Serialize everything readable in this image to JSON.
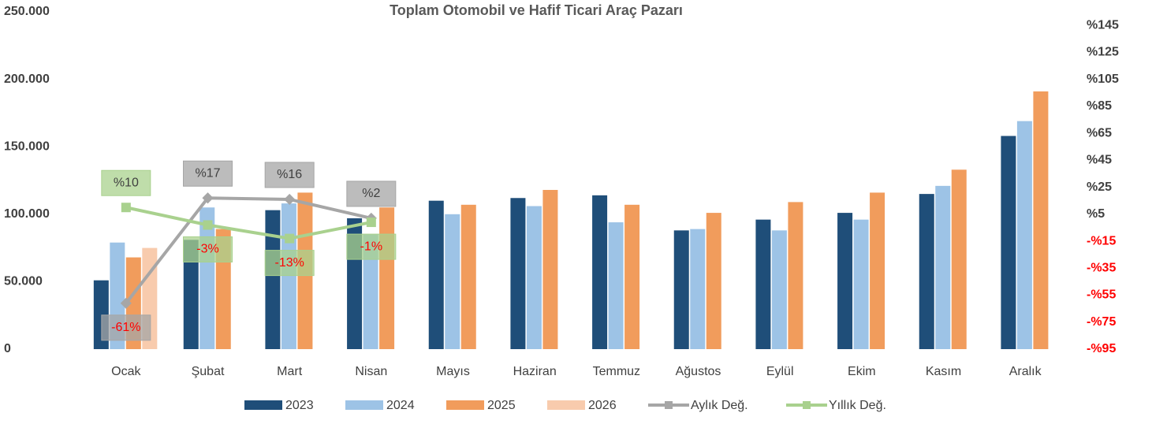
{
  "chart_data": {
    "type": "bar",
    "title": "Toplam Otomobil ve Hafif Ticari Araç Pazarı",
    "categories": [
      "Ocak",
      "Şubat",
      "Mart",
      "Nisan",
      "Mayıs",
      "Haziran",
      "Temmuz",
      "Ağustos",
      "Eylül",
      "Ekim",
      "Kasım",
      "Aralık"
    ],
    "series": [
      {
        "name": "2023",
        "color": "#1f4e79",
        "values": [
          51000,
          81000,
          103000,
          97000,
          110000,
          112000,
          114000,
          88000,
          96000,
          101000,
          115000,
          158000
        ]
      },
      {
        "name": "2024",
        "color": "#9dc3e6",
        "values": [
          79000,
          105000,
          108000,
          85000,
          100000,
          106000,
          94000,
          89000,
          88000,
          96000,
          121000,
          169000
        ]
      },
      {
        "name": "2025",
        "color": "#f19c5c",
        "values": [
          68000,
          89000,
          116000,
          105000,
          107000,
          118000,
          107000,
          101000,
          109000,
          116000,
          133000,
          191000
        ]
      },
      {
        "name": "2026",
        "color": "#f8cbad",
        "values": [
          75000,
          null,
          null,
          null,
          null,
          null,
          null,
          null,
          null,
          null,
          null,
          null
        ]
      },
      {
        "name": "Aylık Değ.",
        "type": "line",
        "axis": "y2",
        "color": "#a6a6a6",
        "values": [
          -61,
          17,
          16,
          2,
          null,
          null,
          null,
          null,
          null,
          null,
          null,
          null
        ],
        "value_labels": [
          "-61%",
          "%17",
          "%16",
          "%2",
          null,
          null,
          null,
          null,
          null,
          null,
          null,
          null
        ]
      },
      {
        "name": "Yıllık Değ.",
        "type": "line",
        "axis": "y2",
        "color": "#a9d18e",
        "values": [
          10,
          -3,
          -13,
          -1,
          null,
          null,
          null,
          null,
          null,
          null,
          null,
          null
        ],
        "value_labels": [
          "%10",
          "-3%",
          "-13%",
          "-1%",
          null,
          null,
          null,
          null,
          null,
          null,
          null,
          null
        ]
      }
    ],
    "ylim": [
      0,
      250000
    ],
    "yticks": [
      0,
      {
        "value": 50000,
        "label": "50.000"
      },
      {
        "value": 100000,
        "label": "100.000"
      },
      {
        "value": 150000,
        "label": "150.000"
      },
      {
        "value": 200000,
        "label": "200.000"
      },
      {
        "value": 250000,
        "label": "250.000"
      }
    ],
    "y2lim": [
      -95,
      155
    ],
    "y2ticks": [
      {
        "value": -95,
        "label": "-%95"
      },
      {
        "value": -75,
        "label": "-%75"
      },
      {
        "value": -55,
        "label": "-%55"
      },
      {
        "value": -35,
        "label": "-%35"
      },
      {
        "value": -15,
        "label": "-%15"
      },
      {
        "value": 5,
        "label": "%5"
      },
      {
        "value": 25,
        "label": "%25"
      },
      {
        "value": 45,
        "label": "%45"
      },
      {
        "value": 65,
        "label": "%65"
      },
      {
        "value": 85,
        "label": "%85"
      },
      {
        "value": 105,
        "label": "%105"
      },
      {
        "value": 125,
        "label": "%125"
      },
      {
        "value": 145,
        "label": "%145"
      }
    ],
    "legend": "bottom"
  }
}
